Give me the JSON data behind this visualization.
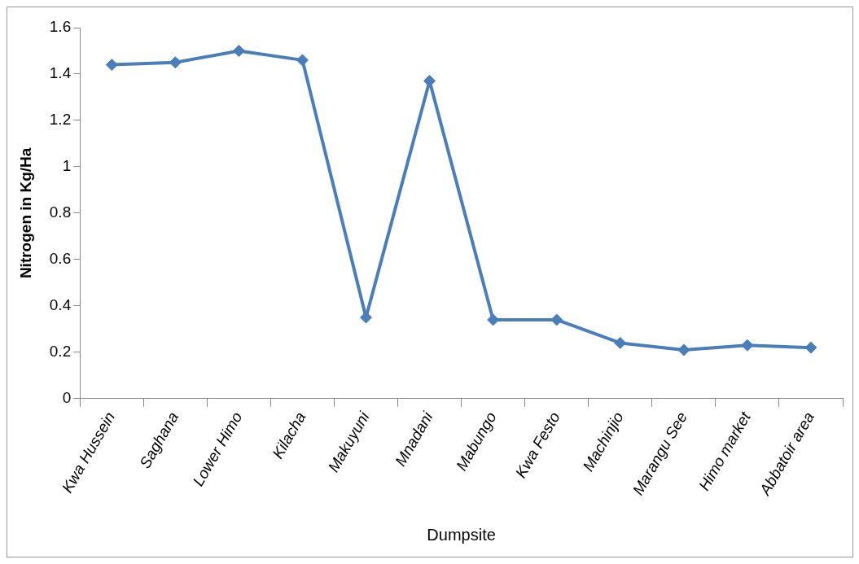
{
  "chart_data": {
    "type": "line",
    "xlabel": "Dumpsite",
    "ylabel": "Nitrogen in Kg/Ha",
    "categories": [
      "Kwa Hussein",
      "Saghana",
      "Lower Himo",
      "Kilacha",
      "Makuyuni",
      "Mnadani",
      "Mabungo",
      "Kwa Festo",
      "Machinjio",
      "Marangu See",
      "Himo market",
      "Abbatoir area"
    ],
    "series": [
      {
        "color": "#4a7ebb",
        "values": [
          1.44,
          1.45,
          1.5,
          1.46,
          0.35,
          1.37,
          0.34,
          0.34,
          0.24,
          0.21,
          0.23,
          0.22
        ]
      }
    ],
    "ylim": [
      0,
      1.6
    ],
    "yticks": [
      0,
      0.2,
      0.4,
      0.6,
      0.8,
      1,
      1.2,
      1.4,
      1.6
    ],
    "grid": false,
    "legend": false,
    "marker": "diamond",
    "line_style": "solid"
  }
}
